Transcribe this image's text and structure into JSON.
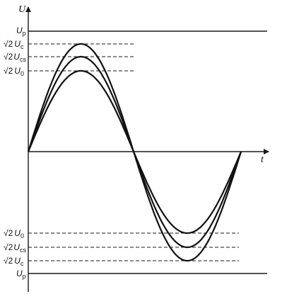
{
  "axes": {
    "y": "U",
    "x": "t"
  },
  "labels": {
    "up_top": {
      "sym": "U",
      "sub": "p"
    },
    "c_top": {
      "coef": "√2",
      "sym": "U",
      "sub": "c"
    },
    "cs_top": {
      "coef": "√2",
      "sym": "U",
      "sub": "cs"
    },
    "zero_top": {
      "coef": "√2",
      "sym": "U",
      "sub": "0"
    },
    "zero_bot": {
      "coef": "√2",
      "sym": "U",
      "sub": "0"
    },
    "cs_bot": {
      "coef": "√2",
      "sym": "U",
      "sub": "cs"
    },
    "c_bot": {
      "coef": "√2",
      "sym": "U",
      "sub": "c"
    },
    "up_bot": {
      "sym": "U",
      "sub": "p"
    }
  },
  "colors": {
    "ink": "#111111",
    "background": "#ffffff"
  }
}
